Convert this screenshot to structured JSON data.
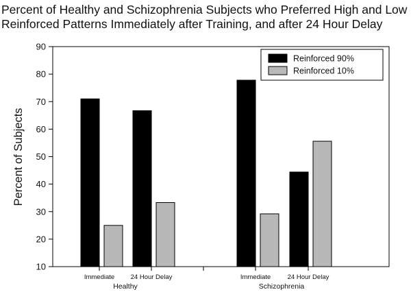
{
  "chart_data": {
    "type": "bar",
    "title": "Percent of Healthy and Schizophrenia Subjects who Preferred High and Low",
    "subtitle": "Reinforced Patterns Immediately after Training, and after 24 Hour Delay",
    "ylabel": "Percent of Subjects",
    "xlabel": "",
    "ylim": [
      10,
      90
    ],
    "yticks": [
      10,
      20,
      30,
      40,
      50,
      60,
      70,
      80,
      90
    ],
    "grid": false,
    "legend_position": "top-right",
    "groups": [
      {
        "name": "Healthy",
        "categories": [
          "Immediate",
          "24 Hour Delay"
        ]
      },
      {
        "name": "Schizophrenia",
        "categories": [
          "Immediate",
          "24 Hour Delay"
        ]
      }
    ],
    "series": [
      {
        "name": "Reinforced 90%",
        "color": "#000000",
        "values": [
          71,
          66.7,
          77.8,
          44.4
        ]
      },
      {
        "name": "Reinforced 10%",
        "color": "#b8b8b8",
        "values": [
          25,
          33.3,
          29.2,
          55.6
        ]
      }
    ]
  }
}
